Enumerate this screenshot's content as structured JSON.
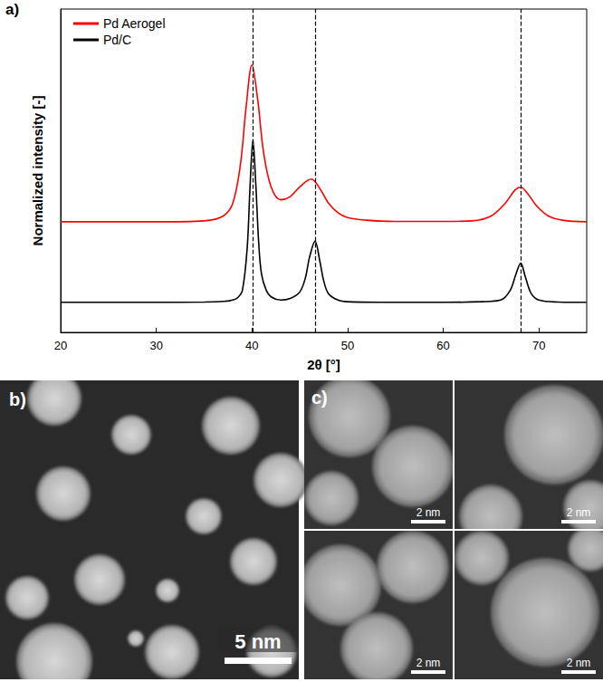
{
  "chart_data": {
    "type": "line",
    "panel_label": "a)",
    "x_label": "2θ [°]",
    "y_label": "Normalized intensity [-]",
    "xlim": [
      20,
      75
    ],
    "xticks": [
      20,
      30,
      40,
      50,
      60,
      70
    ],
    "ylim": [
      0,
      1
    ],
    "yticks": [],
    "tick_labels": "x",
    "grid": false,
    "legend": "upper left",
    "reference_lines": [
      40.1,
      46.6,
      68.1
    ],
    "series": [
      {
        "name": "Pd Aerogel",
        "color": "#ff0000",
        "line_style": "solid",
        "x": [
          20,
          30,
          35,
          37,
          38,
          38.8,
          39.4,
          40,
          40.6,
          41.2,
          42,
          43,
          44,
          45,
          46.2,
          47.2,
          48,
          49,
          50,
          52,
          55,
          60,
          63,
          65,
          66.5,
          67.5,
          68.1,
          68.8,
          69.8,
          71,
          72.5,
          75
        ],
        "values": [
          0.342,
          0.342,
          0.345,
          0.36,
          0.4,
          0.52,
          0.7,
          0.827,
          0.72,
          0.56,
          0.45,
          0.41,
          0.42,
          0.45,
          0.474,
          0.44,
          0.4,
          0.37,
          0.355,
          0.347,
          0.343,
          0.343,
          0.345,
          0.36,
          0.4,
          0.44,
          0.449,
          0.43,
          0.39,
          0.36,
          0.347,
          0.342
        ]
      },
      {
        "name": "Pd/C",
        "color": "#000000",
        "line_style": "solid",
        "x": [
          20,
          30,
          35,
          37,
          38,
          38.5,
          39,
          39.5,
          39.8,
          40.1,
          40.4,
          40.7,
          41,
          41.5,
          42,
          43,
          44,
          45,
          45.6,
          46,
          46.6,
          47.1,
          47.5,
          48,
          49,
          50,
          55,
          60,
          64,
          66,
          67,
          67.6,
          68.1,
          68.6,
          69.2,
          70,
          72,
          75
        ],
        "values": [
          0.093,
          0.093,
          0.094,
          0.096,
          0.1,
          0.107,
          0.13,
          0.26,
          0.45,
          0.595,
          0.46,
          0.28,
          0.18,
          0.13,
          0.11,
          0.1,
          0.105,
          0.125,
          0.17,
          0.23,
          0.282,
          0.22,
          0.16,
          0.12,
          0.1,
          0.095,
          0.093,
          0.093,
          0.095,
          0.1,
          0.13,
          0.18,
          0.214,
          0.17,
          0.12,
          0.1,
          0.094,
          0.093
        ]
      }
    ]
  },
  "micrographs": [
    {
      "label": "b)",
      "scale_bars": [
        "5 nm"
      ]
    },
    {
      "label": "c)",
      "scale_bars": [
        "2 nm",
        "2 nm",
        "2 nm",
        "2 nm"
      ]
    }
  ]
}
